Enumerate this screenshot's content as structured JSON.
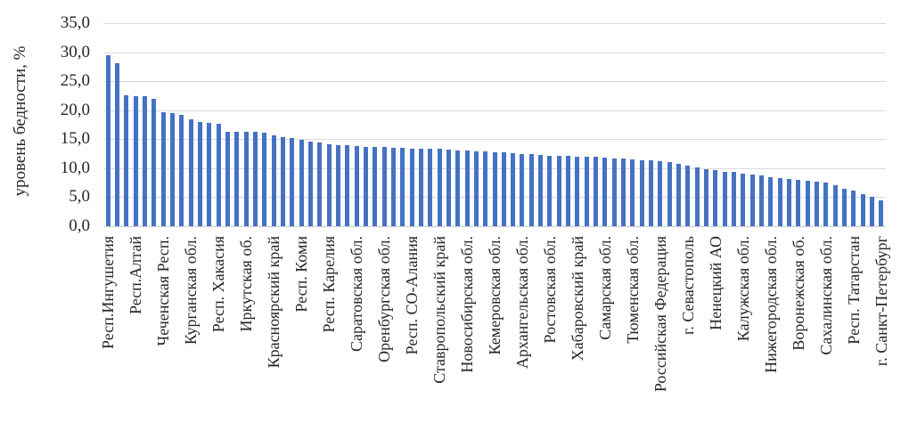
{
  "chart_data": {
    "type": "bar",
    "title": "",
    "ylabel": "уровень бедности, %",
    "xlabel": "",
    "ylim": [
      0,
      35
    ],
    "grid": true,
    "legend": false,
    "bar_color": "#4472C4",
    "gridline_color": "#d9d9d9",
    "y_tick_labels": [
      "35,0",
      "30,0",
      "25,0",
      "20,0",
      "15,0",
      "10,0",
      "5,0",
      "0,0"
    ],
    "y_tick_values": [
      35,
      30,
      25,
      20,
      15,
      10,
      5,
      0
    ],
    "bar_count": 85,
    "x_label_interval": 3,
    "x_tick_labels": [
      "Респ.Ингушетия",
      "Респ.Алтай",
      "Чеченская Респ.",
      "Курганская обл.",
      "Респ. Хакасия",
      "Иркутская об.",
      "Красноярский край",
      "Респ. Коми",
      "Респ. Карелия",
      "Саратовская обл.",
      "Оренбургская обл.",
      "Респ. СО-Алания",
      "Ставропольский край",
      "Новосибирская обл.",
      "Кемеровская обл.",
      "Архангельская обл.",
      "Ростовская обл.",
      "Хабаровский край",
      "Самарская обл.",
      "Тюменская обл.",
      "Российская Федерация",
      "г. Севастополь",
      "Ненецкий АО",
      "Калужская обл.",
      "Нижегородская обл.",
      "Воронежская об.",
      "Сахалинская обл.",
      "Респ. Татарстан",
      "г. Санкт-Петербург"
    ],
    "values": [
      29.5,
      28.1,
      22.5,
      22.4,
      22.4,
      22.0,
      19.6,
      19.5,
      19.2,
      18.4,
      17.9,
      17.8,
      17.6,
      16.3,
      16.3,
      16.2,
      16.2,
      16.1,
      15.6,
      15.4,
      15.2,
      14.9,
      14.6,
      14.4,
      14.2,
      14.0,
      13.9,
      13.8,
      13.7,
      13.6,
      13.6,
      13.5,
      13.5,
      13.4,
      13.4,
      13.3,
      13.3,
      13.2,
      13.1,
      13.0,
      12.9,
      12.9,
      12.8,
      12.7,
      12.6,
      12.5,
      12.4,
      12.3,
      12.2,
      12.1,
      12.1,
      12.0,
      12.0,
      11.9,
      11.8,
      11.7,
      11.6,
      11.5,
      11.4,
      11.3,
      11.2,
      11.0,
      10.8,
      10.5,
      10.1,
      9.8,
      9.6,
      9.4,
      9.3,
      9.1,
      8.9,
      8.7,
      8.5,
      8.3,
      8.2,
      8.0,
      7.9,
      7.7,
      7.5,
      7.0,
      6.4,
      6.1,
      5.5,
      5.1,
      4.5
    ]
  }
}
